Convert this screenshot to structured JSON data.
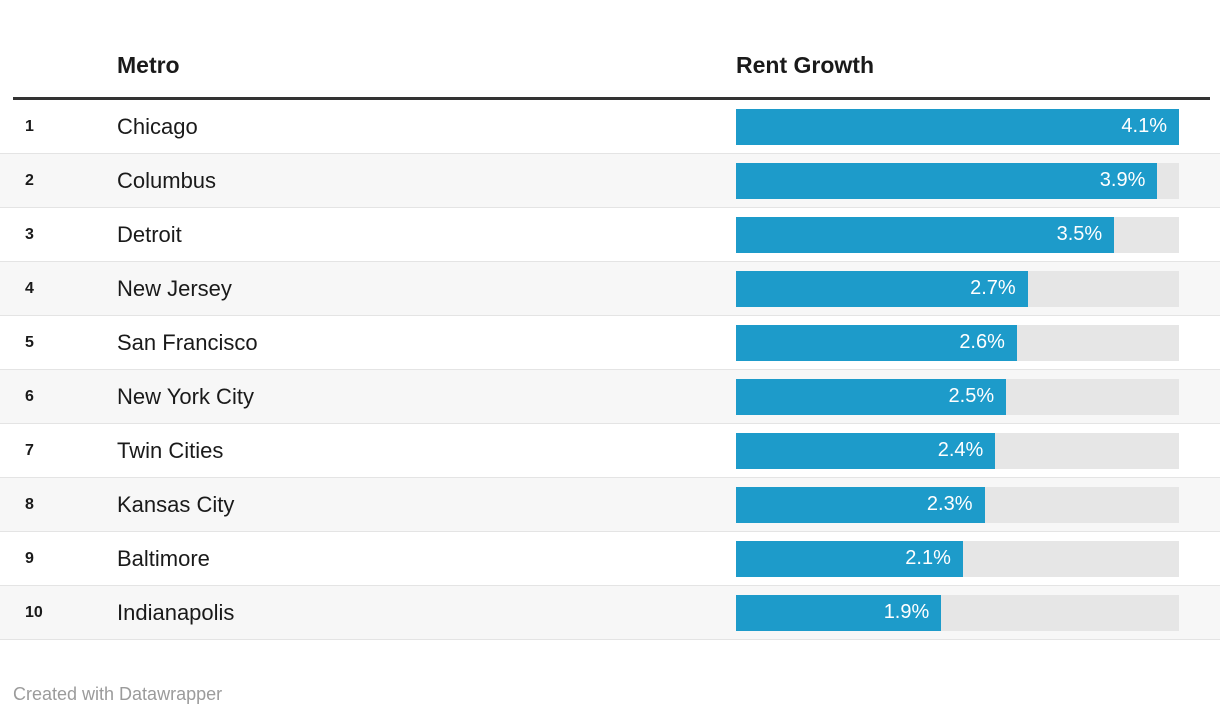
{
  "table": {
    "headers": {
      "rank": "",
      "metro": "Metro",
      "rent_growth": "Rent Growth"
    },
    "rows": [
      {
        "rank": "1",
        "metro": "Chicago",
        "value_label": "4.1%",
        "value": 4.1
      },
      {
        "rank": "2",
        "metro": "Columbus",
        "value_label": "3.9%",
        "value": 3.9
      },
      {
        "rank": "3",
        "metro": "Detroit",
        "value_label": "3.5%",
        "value": 3.5
      },
      {
        "rank": "4",
        "metro": "New Jersey",
        "value_label": "2.7%",
        "value": 2.7
      },
      {
        "rank": "5",
        "metro": "San Francisco",
        "value_label": "2.6%",
        "value": 2.6
      },
      {
        "rank": "6",
        "metro": "New York City",
        "value_label": "2.5%",
        "value": 2.5
      },
      {
        "rank": "7",
        "metro": "Twin Cities",
        "value_label": "2.4%",
        "value": 2.4
      },
      {
        "rank": "8",
        "metro": "Kansas City",
        "value_label": "2.3%",
        "value": 2.3
      },
      {
        "rank": "9",
        "metro": "Baltimore",
        "value_label": "2.1%",
        "value": 2.1
      },
      {
        "rank": "10",
        "metro": "Indianapolis",
        "value_label": "1.9%",
        "value": 1.9
      }
    ],
    "axis_max": 4.1
  },
  "footer": {
    "attribution": "Created with Datawrapper"
  },
  "colors": {
    "bar": "#1d9bca",
    "bar_track": "#e6e6e6",
    "row_alt_bg": "#f7f7f7",
    "header_rule": "#333333",
    "text": "#1a1a1a",
    "value_text": "#ffffff",
    "attribution_text": "#9b9b9b"
  },
  "chart_data": {
    "type": "bar",
    "orientation": "horizontal",
    "title": "",
    "columns": [
      "Metro",
      "Rent Growth"
    ],
    "categories": [
      "Chicago",
      "Columbus",
      "Detroit",
      "New Jersey",
      "San Francisco",
      "New York City",
      "Twin Cities",
      "Kansas City",
      "Baltimore",
      "Indianapolis"
    ],
    "ranks": [
      1,
      2,
      3,
      4,
      5,
      6,
      7,
      8,
      9,
      10
    ],
    "values": [
      4.1,
      3.9,
      3.5,
      2.7,
      2.6,
      2.5,
      2.4,
      2.3,
      2.1,
      1.9
    ],
    "value_labels": [
      "4.1%",
      "3.9%",
      "3.5%",
      "2.7%",
      "2.6%",
      "2.5%",
      "2.4%",
      "2.3%",
      "2.1%",
      "1.9%"
    ],
    "xlim": [
      0,
      4.1
    ],
    "grid": false,
    "legend": false,
    "bar_labels_position": "inside-end"
  }
}
